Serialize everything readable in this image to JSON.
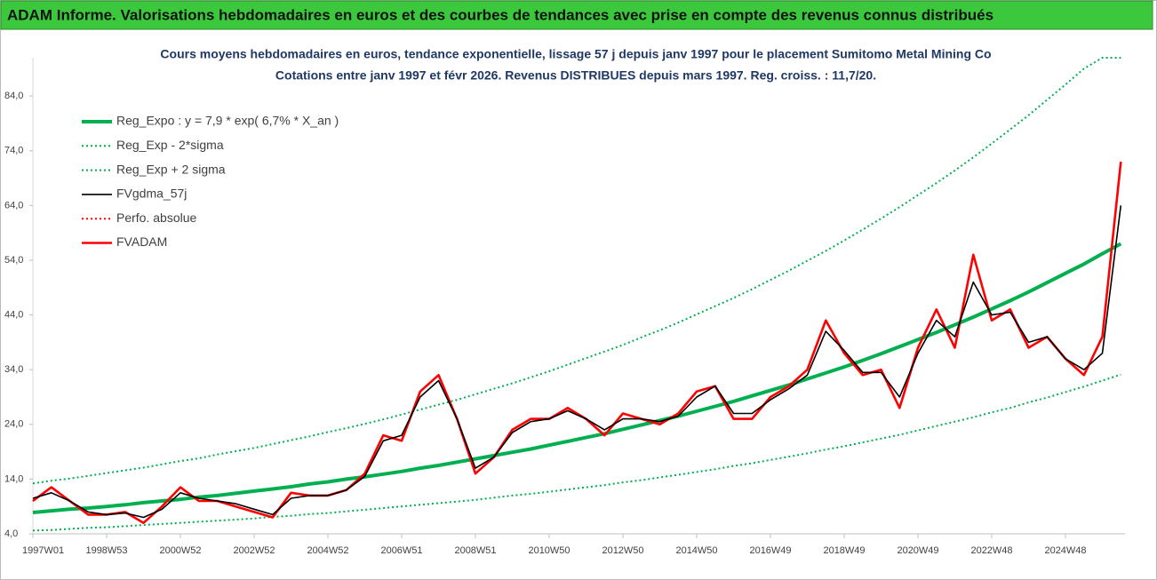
{
  "chart_data": {
    "type": "line",
    "title": "ADAM Informe. Valorisations hebdomadaires en euros et des courbes de tendances avec prise en compte des revenus connus distribués",
    "subtitle": [
      "Cours moyens hebdomadaires en euros, tendance exponentielle, lissage 57 j depuis janv 1997 pour le placement Sumitomo Metal Mining Co",
      "Cotations entre janv 1997 et févr 2026. Revenus DISTRIBUES depuis mars 1997. Reg. croiss. : 11,7/20."
    ],
    "categories": [
      "1997W01",
      null,
      null,
      null,
      "1998W53",
      null,
      null,
      null,
      "2000W52",
      null,
      null,
      null,
      "2002W52",
      null,
      null,
      null,
      "2004W52",
      null,
      null,
      null,
      "2006W51",
      null,
      null,
      null,
      "2008W51",
      null,
      null,
      null,
      "2010W50",
      null,
      null,
      null,
      "2012W50",
      null,
      null,
      null,
      "2014W50",
      null,
      null,
      null,
      "2016W49",
      null,
      null,
      null,
      "2018W49",
      null,
      null,
      null,
      "2020W49",
      null,
      null,
      null,
      "2022W48",
      null,
      null,
      null,
      "2024W48",
      null,
      null,
      null
    ],
    "ylim": [
      4,
      91
    ],
    "yticks": [
      {
        "value": 4,
        "label": "4,0"
      },
      {
        "value": 14,
        "label": "14,0"
      },
      {
        "value": 24,
        "label": "24,0"
      },
      {
        "value": 34,
        "label": "34,0"
      },
      {
        "value": 44,
        "label": "44,0"
      },
      {
        "value": 54,
        "label": "54,0"
      },
      {
        "value": 64,
        "label": "64,0"
      },
      {
        "value": 74,
        "label": "74,0"
      },
      {
        "value": 84,
        "label": "84,0"
      }
    ],
    "grid": false,
    "legend": "upper left",
    "series": [
      {
        "name": "Reg_Expo : y = 7,9 * exp( 6,7% *  X_an )",
        "color": "#00b050",
        "line_style": "solid",
        "values": [
          7.9,
          8.2,
          8.5,
          8.7,
          9.0,
          9.3,
          9.7,
          10.0,
          10.3,
          10.7,
          11.0,
          11.4,
          11.8,
          12.2,
          12.6,
          13.1,
          13.5,
          14.0,
          14.4,
          14.9,
          15.4,
          16.0,
          16.5,
          17.1,
          17.7,
          18.3,
          18.9,
          19.5,
          20.2,
          20.9,
          21.6,
          22.3,
          23.1,
          23.9,
          24.7,
          25.5,
          26.4,
          27.3,
          28.2,
          29.2,
          30.2,
          31.2,
          32.3,
          33.4,
          34.5,
          35.7,
          36.9,
          38.2,
          39.5,
          40.8,
          42.2,
          43.6,
          45.1,
          46.6,
          48.2,
          49.9,
          51.6,
          53.3,
          55.2,
          57.0
        ]
      },
      {
        "name": "Reg_Exp - 2*sigma",
        "color": "#00b050",
        "line_style": "dotted",
        "values": [
          4.6,
          4.7,
          4.9,
          5.1,
          5.2,
          5.4,
          5.6,
          5.8,
          6.0,
          6.2,
          6.4,
          6.6,
          6.8,
          7.1,
          7.3,
          7.6,
          7.8,
          8.1,
          8.4,
          8.7,
          9.0,
          9.3,
          9.6,
          9.9,
          10.2,
          10.6,
          11.0,
          11.3,
          11.7,
          12.1,
          12.5,
          12.9,
          13.4,
          13.8,
          14.3,
          14.8,
          15.3,
          15.8,
          16.4,
          16.9,
          17.5,
          18.1,
          18.7,
          19.4,
          20.0,
          20.7,
          21.4,
          22.1,
          22.9,
          23.7,
          24.5,
          25.3,
          26.2,
          27.0,
          28.0,
          28.9,
          29.9,
          30.9,
          32.0,
          33.1
        ]
      },
      {
        "name": "Reg_Exp + 2 sigma",
        "color": "#00b050",
        "line_style": "dotted",
        "values": [
          13.2,
          13.7,
          14.1,
          14.6,
          15.1,
          15.6,
          16.1,
          16.7,
          17.3,
          17.8,
          18.5,
          19.1,
          19.7,
          20.4,
          21.1,
          21.8,
          22.6,
          23.3,
          24.1,
          24.9,
          25.8,
          26.7,
          27.6,
          28.5,
          29.5,
          30.5,
          31.5,
          32.6,
          33.7,
          34.9,
          36.1,
          37.3,
          38.5,
          39.9,
          41.2,
          42.6,
          44.1,
          45.6,
          47.1,
          48.7,
          50.4,
          52.1,
          53.9,
          55.7,
          57.6,
          59.6,
          61.6,
          63.7,
          65.9,
          68.1,
          70.4,
          72.8,
          75.3,
          77.9,
          80.5,
          83.3,
          86.1,
          89.0,
          91.0,
          91.0
        ]
      },
      {
        "name": "FVgdma_57j",
        "color": "#000000",
        "line_style": "solid",
        "values": [
          10.5,
          11.5,
          10,
          8,
          7.5,
          7.8,
          7,
          8.5,
          11.5,
          10.5,
          10,
          9.5,
          8.5,
          7.5,
          10.5,
          11,
          11,
          12,
          14.5,
          21,
          22,
          29,
          32,
          25,
          16,
          18,
          22.5,
          24.5,
          25,
          26.5,
          25,
          23,
          25,
          25,
          24.5,
          25.5,
          29,
          31,
          26,
          26,
          28.5,
          30.5,
          33,
          41,
          37.5,
          33.5,
          33.5,
          29,
          37,
          43,
          40,
          50,
          44,
          44.5,
          39,
          40,
          36,
          34,
          37,
          64
        ]
      },
      {
        "name": "Perfo. absolue",
        "color": "#ff0000",
        "line_style": "dotted",
        "values": [
          10,
          12.5,
          10,
          7.5,
          7.5,
          8,
          6,
          9,
          12.5,
          10,
          10,
          9,
          8,
          7,
          11.5,
          11,
          11,
          12,
          15,
          22,
          21,
          30,
          33,
          25,
          15,
          18,
          23,
          25,
          25,
          27,
          25,
          22,
          26,
          25,
          24,
          26,
          30,
          31,
          25,
          25,
          29,
          31,
          34,
          43,
          37,
          33,
          34,
          27,
          38,
          45,
          38,
          55,
          43,
          45,
          38,
          40,
          36,
          33,
          40,
          72
        ]
      },
      {
        "name": "FVADAM",
        "color": "#ff0000",
        "line_style": "solid",
        "values": [
          10,
          12.5,
          10,
          7.5,
          7.5,
          8,
          6,
          9,
          12.5,
          10,
          10,
          9,
          8,
          7,
          11.5,
          11,
          11,
          12,
          15,
          22,
          21,
          30,
          33,
          25,
          15,
          18,
          23,
          25,
          25,
          27,
          25,
          22,
          26,
          25,
          24,
          26,
          30,
          31,
          25,
          25,
          29,
          31,
          34,
          43,
          37,
          33,
          34,
          27,
          38,
          45,
          38,
          55,
          43,
          45,
          38,
          40,
          36,
          33,
          40,
          72
        ]
      }
    ]
  }
}
